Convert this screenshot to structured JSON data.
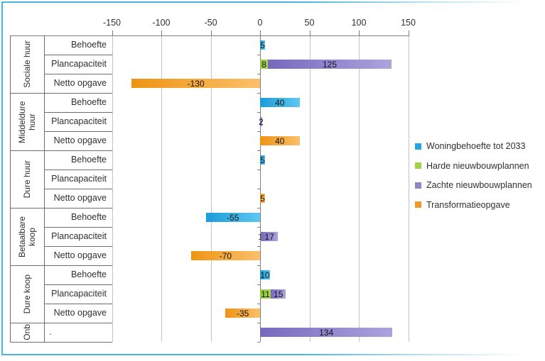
{
  "frame": {
    "border_color": "#49B6DE",
    "background": "#FFFFFF"
  },
  "chart_data": {
    "type": "bar",
    "orientation": "horizontal",
    "stacked": true,
    "grid": true,
    "axis": {
      "position": "top",
      "min": -150,
      "max": 150,
      "step": 50,
      "tick_values": [
        -150,
        -100,
        -50,
        0,
        50,
        100,
        150
      ],
      "tick_labels": [
        "-150",
        "-100",
        "-50",
        "0",
        "50",
        "100",
        "150"
      ]
    },
    "legend": {
      "position": "right",
      "entries": [
        {
          "label": "Woningbehoefte tot 2033",
          "color": "#29A4DC"
        },
        {
          "label": "Harde nieuwbouwplannen",
          "color": "#A3D14A"
        },
        {
          "label": "Zachte nieuwbouwplannen",
          "color": "#8F86C5"
        },
        {
          "label": "Transformatieopgave",
          "color": "#F0972D"
        }
      ]
    },
    "series_styles": {
      "Woningbehoefte tot 2033": {
        "from": "#1C9CD8",
        "to": "#5FC7F1"
      },
      "Harde nieuwbouwplannen": {
        "from": "#90C63C",
        "to": "#A9D64F"
      },
      "Zachte nieuwbouwplannen": {
        "from": "#7669BE",
        "to": "#ADA3DC"
      },
      "Transformatieopgave": {
        "from": "#EE9413",
        "to": "#FBC06B"
      }
    },
    "groups": [
      {
        "name": "Sociale huur",
        "rows": [
          {
            "label": "Behoefte",
            "bars": [
              {
                "series": "Woningbehoefte tot 2033",
                "value": 5,
                "data_label": "5"
              }
            ]
          },
          {
            "label": "Plancapaciteit",
            "bars": [
              {
                "series": "Harde nieuwbouwplannen",
                "value": 8,
                "data_label": "8"
              },
              {
                "series": "Zachte nieuwbouwplannen",
                "value": 125,
                "data_label": "125"
              }
            ]
          },
          {
            "label": "Netto opgave",
            "bars": [
              {
                "series": "Transformatieopgave",
                "value": -130,
                "data_label": "-130"
              }
            ]
          }
        ]
      },
      {
        "name": "Middeldure huur",
        "rows": [
          {
            "label": "Behoefte",
            "bars": [
              {
                "series": "Woningbehoefte tot 2033",
                "value": 40,
                "data_label": "40"
              }
            ]
          },
          {
            "label": "Plancapaciteit",
            "bars": [
              {
                "series": "Zachte nieuwbouwplannen",
                "value": 2,
                "data_label": "2"
              }
            ]
          },
          {
            "label": "Netto opgave",
            "bars": [
              {
                "series": "Transformatieopgave",
                "value": 40,
                "data_label": "40"
              }
            ]
          }
        ]
      },
      {
        "name": "Dure huur",
        "rows": [
          {
            "label": "Behoefte",
            "bars": [
              {
                "series": "Woningbehoefte tot 2033",
                "value": 5,
                "data_label": "5"
              }
            ]
          },
          {
            "label": "Plancapaciteit",
            "bars": []
          },
          {
            "label": "Netto opgave",
            "bars": [
              {
                "series": "Transformatieopgave",
                "value": 5,
                "data_label": "5"
              }
            ]
          }
        ]
      },
      {
        "name": "Betaalbare koop",
        "rows": [
          {
            "label": "Behoefte",
            "bars": [
              {
                "series": "Woningbehoefte tot 2033",
                "value": -55,
                "data_label": "-55"
              }
            ]
          },
          {
            "label": "Plancapaciteit",
            "bars": [
              {
                "series": "Harde nieuwbouwplannen",
                "value": 1,
                "data_label": "1"
              },
              {
                "series": "Zachte nieuwbouwplannen",
                "value": 17,
                "data_label": "17"
              }
            ]
          },
          {
            "label": "Netto opgave",
            "bars": [
              {
                "series": "Transformatieopgave",
                "value": -70,
                "data_label": "-70"
              }
            ]
          }
        ]
      },
      {
        "name": "Dure koop",
        "rows": [
          {
            "label": "Behoefte",
            "bars": [
              {
                "series": "Woningbehoefte tot 2033",
                "value": 10,
                "data_label": "10"
              }
            ]
          },
          {
            "label": "Plancapaciteit",
            "bars": [
              {
                "series": "Harde nieuwbouwplannen",
                "value": 11,
                "data_label": "11"
              },
              {
                "series": "Zachte nieuwbouwplannen",
                "value": 15,
                "data_label": "15"
              }
            ]
          },
          {
            "label": "Netto opgave",
            "bars": [
              {
                "series": "Transformatieopgave",
                "value": -35,
                "data_label": "-35"
              }
            ]
          }
        ]
      },
      {
        "name": "Onb",
        "rows": [
          {
            "label": ".",
            "bars": [
              {
                "series": "Zachte nieuwbouwplannen",
                "value": 134,
                "data_label": "134"
              }
            ]
          }
        ]
      }
    ]
  }
}
